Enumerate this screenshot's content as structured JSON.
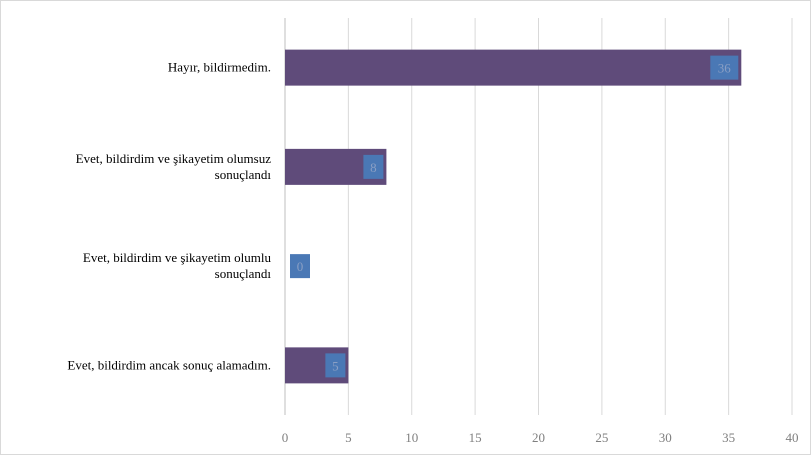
{
  "chart_data": {
    "type": "bar",
    "orientation": "horizontal",
    "categories": [
      [
        "Hayır, bildirmedim."
      ],
      [
        "Evet, bildirdim ve şikayetim olumsuz",
        "sonuçlandı"
      ],
      [
        "Evet, bildirdim ve şikayetim olumlu",
        "sonuçlandı"
      ],
      [
        "Evet, bildirdim ancak sonuç alamadım."
      ]
    ],
    "values": [
      36,
      8,
      0,
      5
    ],
    "xlim": [
      0,
      40
    ],
    "xticks": [
      "0",
      "5",
      "10",
      "15",
      "20",
      "25",
      "30",
      "35",
      "40"
    ],
    "grid": true,
    "legend": "none",
    "colors": {
      "bar": "#5f4b7a",
      "label_box": "#4a78b5",
      "gridline": "#d9d9d9",
      "axis": "#bfbfbf"
    }
  }
}
